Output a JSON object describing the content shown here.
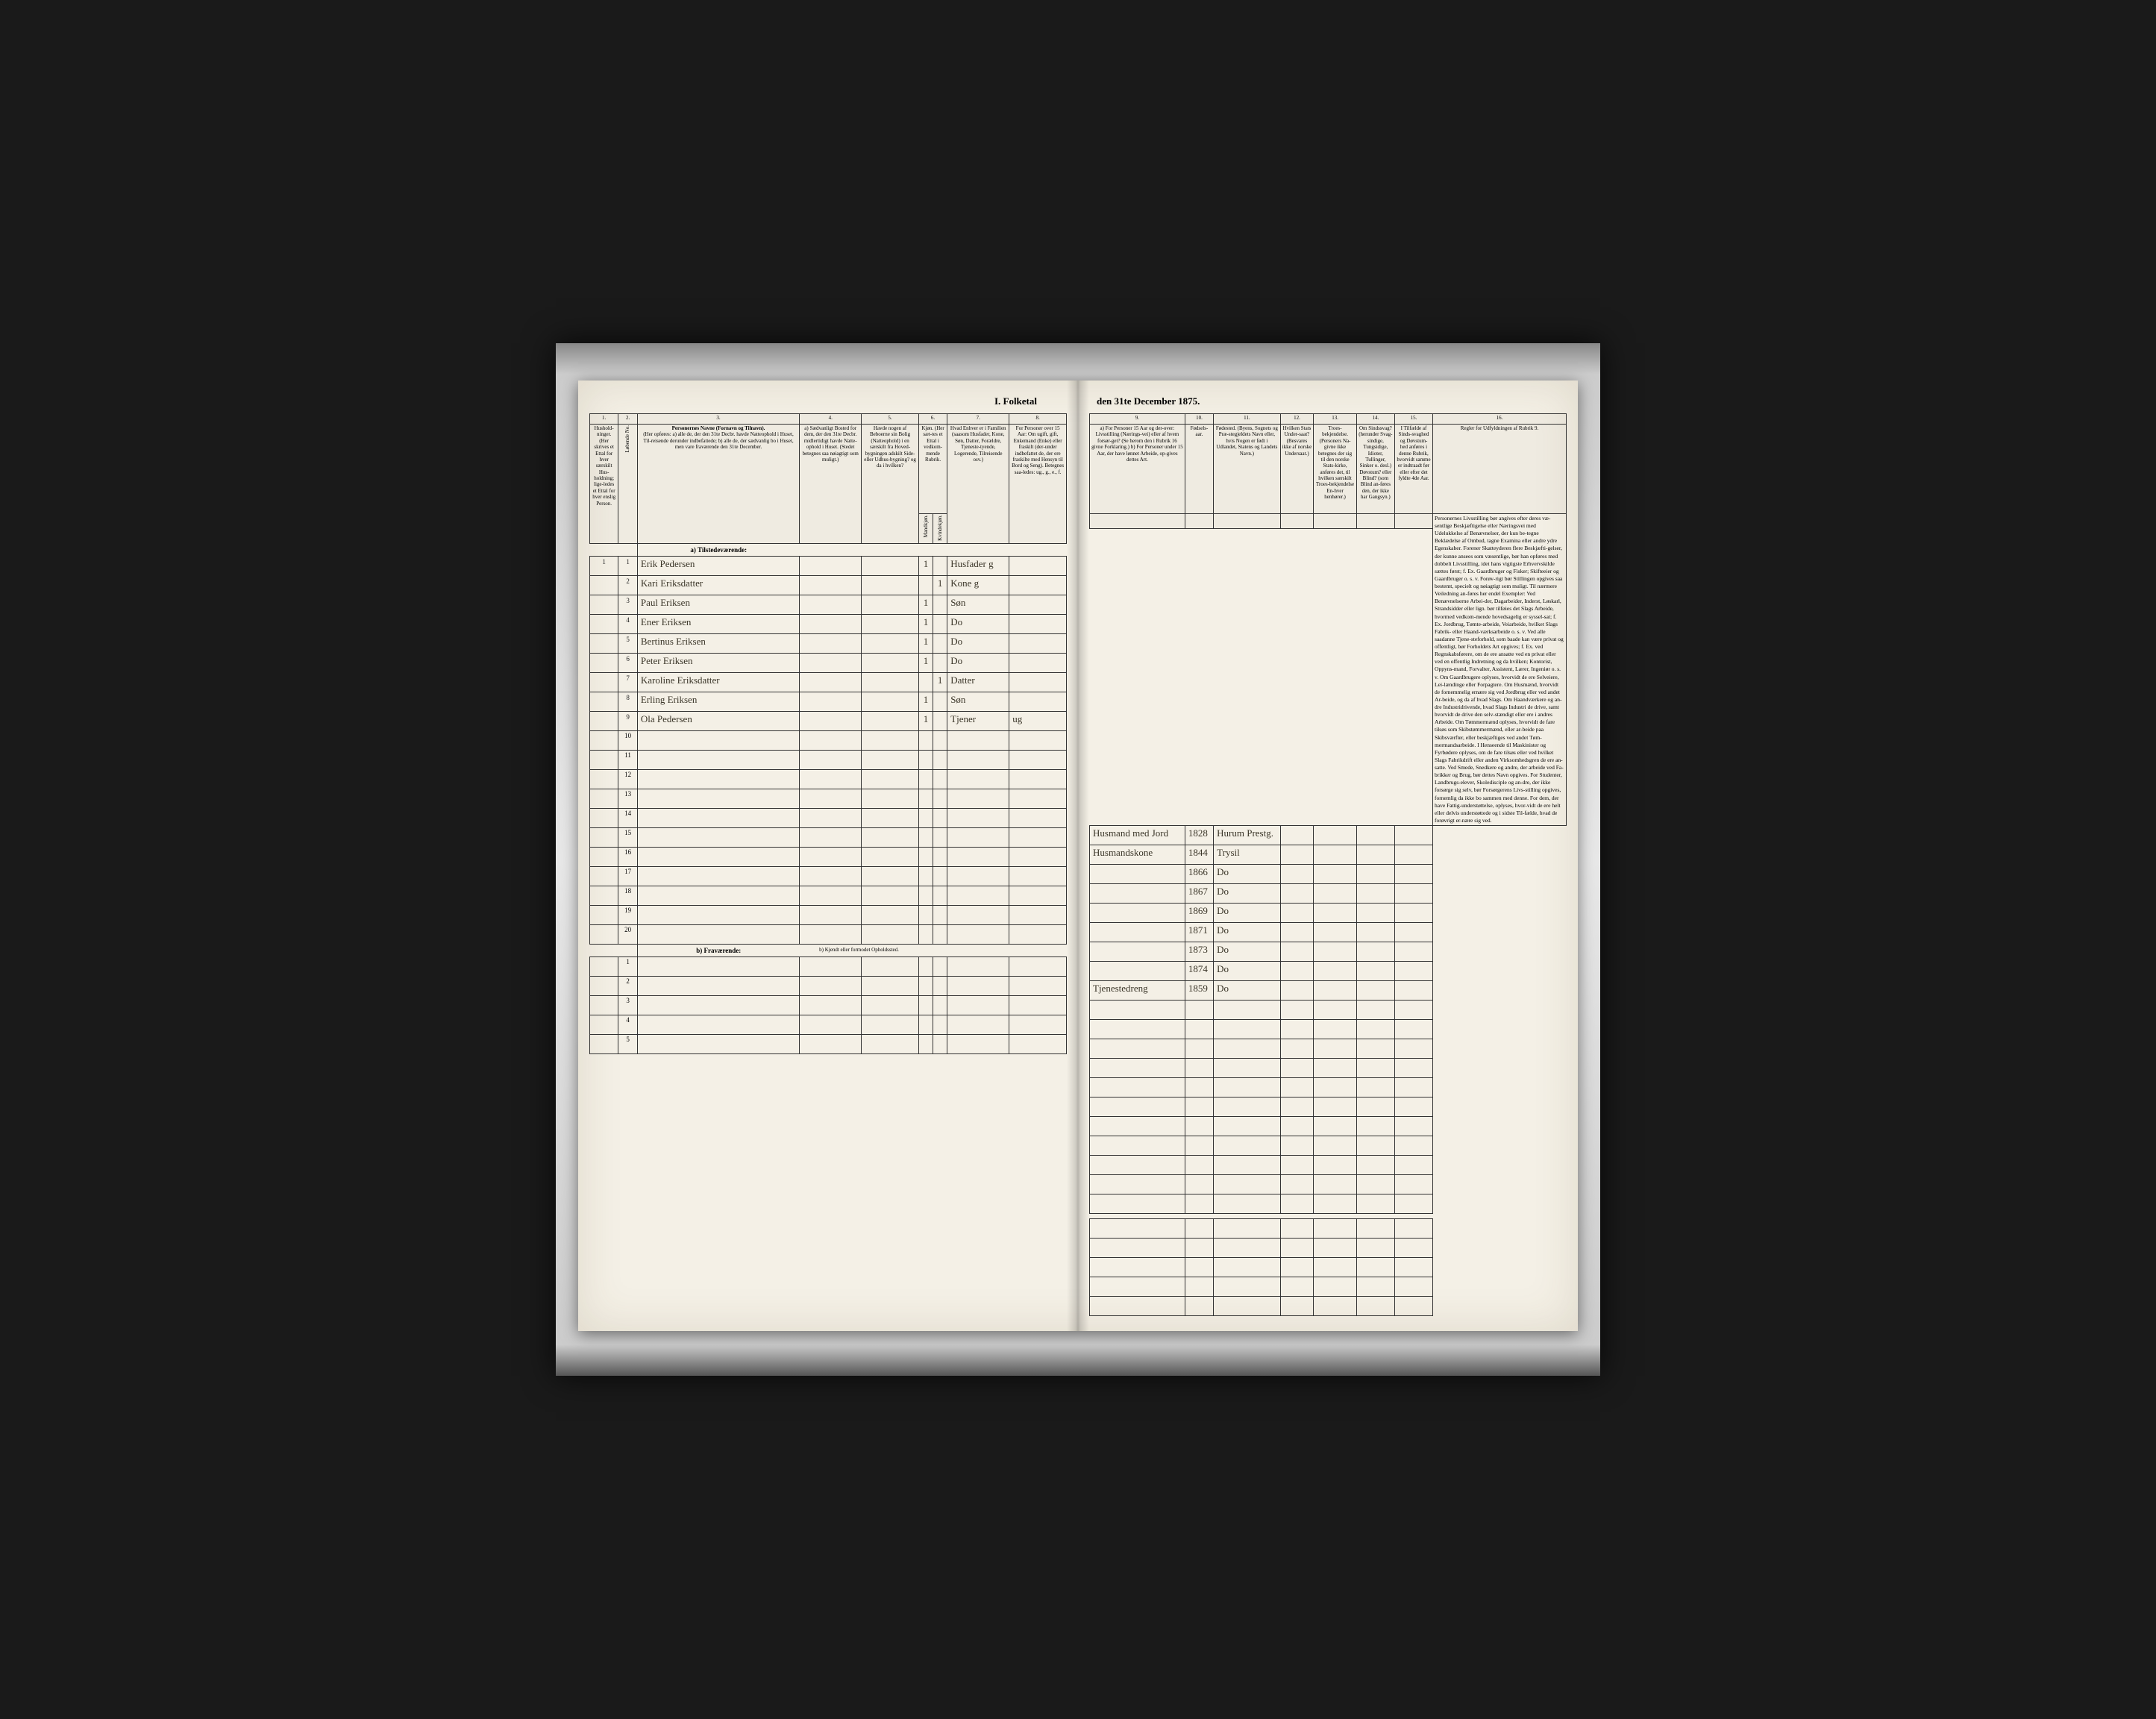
{
  "document": {
    "title_left": "I. Folketal",
    "title_right": "den 31te December 1875.",
    "columns_left": {
      "c1": "1.",
      "c2": "2.",
      "c3": "3.",
      "c4": "4.",
      "c5": "5.",
      "c6": "6.",
      "c7": "7.",
      "c8": "8."
    },
    "columns_right": {
      "c9": "9.",
      "c10": "10.",
      "c11": "11.",
      "c12": "12.",
      "c13": "13.",
      "c14": "14.",
      "c15": "15.",
      "c16": "16."
    },
    "headers_left": {
      "h1": "Hushold-ninger.\n(Her skrives et Ettal for hver særskilt Hus-holdning; lige-ledes et Ettal for hver enslig Person.",
      "h2": "Løbende No.",
      "h3_title": "Personernes Navne (Fornavn og Tilnavn).",
      "h3_body": "(Her opføres:\na) alle de, der den 31te Decbr. havde Natteophold i Huset, Til-reisende derunder indbefattede;\nb) alle de, der sædvanlig bo i Huset, men vare fraværende den 31te December.",
      "h4": "a) Sædvanligt Bosted for dem, der den 31te Decbr. midlertidigt havde Natte-ophold i Huset. (Stedet betegnes saa nøiagtigt som muligt.)",
      "h5": "Havde nogen af Beboerne sin Bolig (Natteophold) i en særskilt fra Hoved-bygningen adskilt Side- eller Udhus-bygning? og da i hvilken?",
      "h6": "Kjøn.\n(Her sæt-tes et Ettal i vedkom-mende Rubrik.",
      "h6a": "Mandkjøn.",
      "h6b": "Kvindekjøn.",
      "h7": "Hvad Enhver er i Familien\n(saasom Husfader, Kone, Søn, Datter, Forældre, Tjeneste-tyende, Logerende, Tilreisende osv.)",
      "h8": "For Personer over 15 Aar: Om ugift, gift, Enkemand (Enke) eller fraskilt (der-under indbefattet de, der ere fraskilte med Hensyn til Bord og Seng). Betegnes saa-ledes: ug., g., e., f."
    },
    "headers_right": {
      "h9": "a) For Personer 15 Aar og der-over: Livsstilling (Nærings-vei) eller af hvem forsør-get? (Se herom den i Rubrik 16 givne Forklaring.)\nb) For Personer under 15 Aar, der have lønnet Arbeide, op-gives dettes Art.",
      "h10": "Fødsels-aar.",
      "h11": "Fødested.\n(Byens, Sognets og Præ-stegjeldets Navn eller, hvis Nogen er født i Udlandet, Statens og Landets Navn.)",
      "h12": "Hvilken Stats Under-saat?\n(Besvares ikke af norske Undersaat.)",
      "h13": "Troes-bekjendelse.\n(Personers Na-givne ikke betegnes der sig til den norske Stats-kirke, anføres det, til hvilken særskilt Troes-bekjendelse En-hver henhører.)",
      "h14": "Om Sindssvag?\n(herunder Svag-sindige, Tungsidige, Idioter, Tullinger, Sinker o. desl.)\nDøvstum? eller Blind?\n(som Blind an-føres den, der ikke har Gangsyn.)",
      "h15": "I Tilfælde af Sinds-svaghed og Døvstum-hed anføres i denne Rubrik, hvorvidt samme er indtraadt før eller efter det fyldte 4de Aar.",
      "h16": "Regler for Udfyldningen\naf\nRubrik 9."
    },
    "section_a": "a) Tilstedeværende:",
    "section_b": "b) Fraværende:",
    "section_b_note": "b) Kjendt eller formodet Opholdssted.",
    "rows": [
      {
        "n": "1",
        "hh": "1",
        "name": "Erik Pedersen",
        "c4": "",
        "c5": "",
        "m": "1",
        "k": "",
        "fam": "Husfader g",
        "stat": "",
        "liv": "Husmand med Jord",
        "aar": "1828",
        "sted": "Hurum Prestg.",
        "r12": "",
        "r13": "",
        "r14": "",
        "r15": ""
      },
      {
        "n": "2",
        "hh": "",
        "name": "Kari Eriksdatter",
        "c4": "",
        "c5": "",
        "m": "",
        "k": "1",
        "fam": "Kone g",
        "stat": "",
        "liv": "Husmandskone",
        "aar": "1844",
        "sted": "Trysil",
        "r12": "",
        "r13": "",
        "r14": "",
        "r15": ""
      },
      {
        "n": "3",
        "hh": "",
        "name": "Paul Eriksen",
        "c4": "",
        "c5": "",
        "m": "1",
        "k": "",
        "fam": "Søn",
        "stat": "",
        "liv": "",
        "aar": "1866",
        "sted": "Do",
        "r12": "",
        "r13": "",
        "r14": "",
        "r15": ""
      },
      {
        "n": "4",
        "hh": "",
        "name": "Ener Eriksen",
        "c4": "",
        "c5": "",
        "m": "1",
        "k": "",
        "fam": "Do",
        "stat": "",
        "liv": "",
        "aar": "1867",
        "sted": "Do",
        "r12": "",
        "r13": "",
        "r14": "",
        "r15": ""
      },
      {
        "n": "5",
        "hh": "",
        "name": "Bertinus Eriksen",
        "c4": "",
        "c5": "",
        "m": "1",
        "k": "",
        "fam": "Do",
        "stat": "",
        "liv": "",
        "aar": "1869",
        "sted": "Do",
        "r12": "",
        "r13": "",
        "r14": "",
        "r15": ""
      },
      {
        "n": "6",
        "hh": "",
        "name": "Peter Eriksen",
        "c4": "",
        "c5": "",
        "m": "1",
        "k": "",
        "fam": "Do",
        "stat": "",
        "liv": "",
        "aar": "1871",
        "sted": "Do",
        "r12": "",
        "r13": "",
        "r14": "",
        "r15": ""
      },
      {
        "n": "7",
        "hh": "",
        "name": "Karoline Eriksdatter",
        "c4": "",
        "c5": "",
        "m": "",
        "k": "1",
        "fam": "Datter",
        "stat": "",
        "liv": "",
        "aar": "1873",
        "sted": "Do",
        "r12": "",
        "r13": "",
        "r14": "",
        "r15": ""
      },
      {
        "n": "8",
        "hh": "",
        "name": "Erling Eriksen",
        "c4": "",
        "c5": "",
        "m": "1",
        "k": "",
        "fam": "Søn",
        "stat": "",
        "liv": "",
        "aar": "1874",
        "sted": "Do",
        "r12": "",
        "r13": "",
        "r14": "",
        "r15": ""
      },
      {
        "n": "9",
        "hh": "",
        "name": "Ola Pedersen",
        "c4": "",
        "c5": "",
        "m": "1",
        "k": "",
        "fam": "Tjener",
        "stat": "ug",
        "liv": "Tjenestedreng",
        "aar": "1859",
        "sted": "Do",
        "r12": "",
        "r13": "",
        "r14": "",
        "r15": ""
      }
    ],
    "empty_rows_a": [
      "10",
      "11",
      "12",
      "13",
      "14",
      "15",
      "16",
      "17",
      "18",
      "19",
      "20"
    ],
    "empty_rows_b": [
      "1",
      "2",
      "3",
      "4",
      "5"
    ],
    "instructions": "Personernes Livsstilling bør angives efter deres væ-sentlige Beskjæftigelse eller Næringsvei med Udelukkelse af Benævnelser, der kun be-tegne Beklædelse af Ombud, tagne Examina eller andre ydre Egenskaber. Forener Skatteyderen flere Beskjæfti-gelser, der kunne ansees som væsentlige, bør han opføres med dobbelt Livsstilling, idet hans vigtigste Erhvervskilde sættes først; f. Ex. Gaardbruger og Fisker; Skifteeier og Gaardbruger o. s. v. Forøv-rigt bør Stillingen opgives saa bestemt, specielt og nøiagtigt som muligt.\n\nTil nærmere Veiledning an-føres her endel Exempler:\n\nVed Benævnelserne Arbei-der, Dagarbeider, Inderst, Løskarl, Strandsidder eller lign. bør tilføies det Slags Arbeide, hvormed vedkom-mende hovedsagelig er syssel-sat; f. Ex. Jordbrug, Tømte-arbeide, Veiarbeide, hvilket Slags Fabrik- eller Haand-værksarbeide o. s. v.\n\nVed alle saadanne Tjene-steforhold, som baade kan være privat og offentligt, bør Forholdets Art opgives; f. Ex. ved Regnskabsførere, om de ere ansatte ved en privat eller ved en offentlig Indretning og da hvilken; Kontorist, Oppyns-mand, Forvalter, Assistent, Lærer, Ingeniør o. s. v.\n\nOm Gaardbrugere oplyses, hvorvidt de ere Selveiere, Lei-lændinge eller Forpagtere.\n\nOm Husmænd, hvorvidt de fornemmelig ernære sig ved Jordbrug eller ved andet Ar-beide, og da af hvad Slags.\n\nOm Haandværkere og an-dre Industridrivende, hvad Slags Industri de drive, samt hvorvidt de drive den selv-stændigt eller ere i andres Arbeide.\n\nOm Tømmermænd oplyses, hvorvidt de fare tilsøs som Skibstømmermænd, eller ar-beide paa Skibsværfter, eller beskjæftiges ved andet Tøm-mermandsarbeide.\n\nI Henseende til Maskinister og Fyrbødere oplyses, om de fare tilsøs eller ved hvilket Slags Fabrikdrift eller anden Virksomhedsgren de ere an-satte.\n\nVed Smede, Snedkere og andre, der arbeide ved Fa-brikker og Brug, bør dettes Navn opgives.\n\nFor Studenter, Landbrugs-elever, Skoledisciple og an-dre, der ikke forsørge sig selv, bør Forsørgerens Livs-stilling opgives, fornemlig da ikke bo sammen med denne.\n\nFor dem, der have Fattig-understøttelse, oplyses, hvor-vidt de ere helt eller delvis understøttede og i sidste Til-fælde, hvad de forøvrigt er-nære sig ved."
  },
  "style": {
    "paper_color": "#f4f0e6",
    "ink_color": "#3a3528",
    "line_color": "#333333",
    "frame_bg": "#1a1a1a",
    "cursive_font": "Brush Script MT",
    "print_font": "Times New Roman",
    "header_fontsize": 7,
    "data_fontsize": 13,
    "rownum_fontsize": 9
  }
}
